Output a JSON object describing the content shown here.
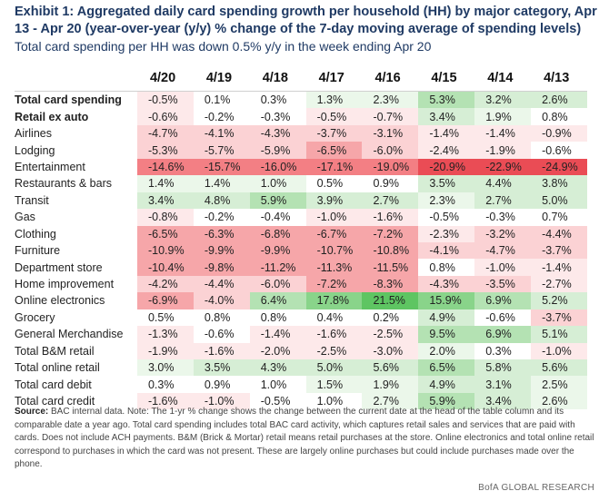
{
  "title": "Exhibit 1: Aggregated daily card spending growth per household (HH) by major category, Apr 13 - Apr 20 (year-over-year (y/y) % change of the 7-day moving average of spending levels)",
  "subtitle": "Total card spending per HH was down 0.5% y/y in the week ending Apr 20",
  "columns": [
    "4/20",
    "4/19",
    "4/18",
    "4/17",
    "4/16",
    "4/15",
    "4/14",
    "4/13"
  ],
  "colors": {
    "dark_red": "#ea4c55",
    "red": "#f37f84",
    "mid_red": "#f6a6a9",
    "light_red": "#fbd2d4",
    "pale_red": "#fde9ea",
    "dark_green": "#5ec562",
    "green": "#89d48a",
    "mid_green": "#b4e2b3",
    "light_green": "#d6eed5",
    "pale_green": "#ebf7ea",
    "neutral": "#ffffff",
    "title": "#1f3a64"
  },
  "rows": [
    {
      "label": "Total card spending",
      "bold": true,
      "values": [
        "-0.5%",
        "0.1%",
        "0.3%",
        "1.3%",
        "2.3%",
        "5.3%",
        "3.2%",
        "2.6%"
      ],
      "tones": [
        "r1",
        "n",
        "n",
        "g1",
        "g1",
        "g3",
        "g2",
        "g2"
      ]
    },
    {
      "label": "Retail ex auto",
      "bold": true,
      "values": [
        "-0.6%",
        "-0.2%",
        "-0.3%",
        "-0.5%",
        "-0.7%",
        "3.4%",
        "1.9%",
        "0.8%"
      ],
      "tones": [
        "r1",
        "n",
        "n",
        "r1",
        "r1",
        "g2",
        "g1",
        "n"
      ]
    },
    {
      "label": "Airlines",
      "bold": false,
      "values": [
        "-4.7%",
        "-4.1%",
        "-4.3%",
        "-3.7%",
        "-3.1%",
        "-1.4%",
        "-1.4%",
        "-0.9%"
      ],
      "tones": [
        "r2",
        "r2",
        "r2",
        "r2",
        "r2",
        "r1",
        "r1",
        "r1"
      ]
    },
    {
      "label": "Lodging",
      "bold": false,
      "values": [
        "-5.3%",
        "-5.7%",
        "-5.9%",
        "-6.5%",
        "-6.0%",
        "-2.4%",
        "-1.9%",
        "-0.6%"
      ],
      "tones": [
        "r2",
        "r2",
        "r2",
        "r3",
        "r2",
        "r1",
        "r1",
        "n"
      ]
    },
    {
      "label": "Entertainment",
      "bold": false,
      "values": [
        "-14.6%",
        "-15.7%",
        "-16.0%",
        "-17.1%",
        "-19.0%",
        "-20.9%",
        "-22.9%",
        "-24.9%"
      ],
      "tones": [
        "r4",
        "r4",
        "r4",
        "r4",
        "r4",
        "r5",
        "r5",
        "r5"
      ]
    },
    {
      "label": "Restaurants & bars",
      "bold": false,
      "values": [
        "1.4%",
        "1.4%",
        "1.0%",
        "0.5%",
        "0.9%",
        "3.5%",
        "4.4%",
        "3.8%"
      ],
      "tones": [
        "g1",
        "g1",
        "g1",
        "n",
        "n",
        "g2",
        "g2",
        "g2"
      ]
    },
    {
      "label": "Transit",
      "bold": false,
      "values": [
        "3.4%",
        "4.8%",
        "5.9%",
        "3.9%",
        "2.7%",
        "2.3%",
        "2.7%",
        "5.0%"
      ],
      "tones": [
        "g2",
        "g2",
        "g3",
        "g2",
        "g2",
        "g1",
        "g2",
        "g2"
      ]
    },
    {
      "label": "Gas",
      "bold": false,
      "values": [
        "-0.8%",
        "-0.2%",
        "-0.4%",
        "-1.0%",
        "-1.6%",
        "-0.5%",
        "-0.3%",
        "0.7%"
      ],
      "tones": [
        "r1",
        "n",
        "n",
        "r1",
        "r1",
        "n",
        "n",
        "n"
      ]
    },
    {
      "label": "Clothing",
      "bold": false,
      "values": [
        "-6.5%",
        "-6.3%",
        "-6.8%",
        "-6.7%",
        "-7.2%",
        "-2.3%",
        "-3.2%",
        "-4.4%"
      ],
      "tones": [
        "r3",
        "r3",
        "r3",
        "r3",
        "r3",
        "r1",
        "r2",
        "r2"
      ]
    },
    {
      "label": "Furniture",
      "bold": false,
      "values": [
        "-10.9%",
        "-9.9%",
        "-9.9%",
        "-10.7%",
        "-10.8%",
        "-4.1%",
        "-4.7%",
        "-3.7%"
      ],
      "tones": [
        "r3",
        "r3",
        "r3",
        "r3",
        "r3",
        "r2",
        "r2",
        "r2"
      ]
    },
    {
      "label": "Department store",
      "bold": false,
      "values": [
        "-10.4%",
        "-9.8%",
        "-11.2%",
        "-11.3%",
        "-11.5%",
        "0.8%",
        "-1.0%",
        "-1.4%"
      ],
      "tones": [
        "r3",
        "r3",
        "r3",
        "r3",
        "r3",
        "n",
        "r1",
        "r1"
      ]
    },
    {
      "label": "Home improvement",
      "bold": false,
      "values": [
        "-4.2%",
        "-4.4%",
        "-6.0%",
        "-7.2%",
        "-8.3%",
        "-4.3%",
        "-3.5%",
        "-2.7%"
      ],
      "tones": [
        "r2",
        "r2",
        "r2",
        "r3",
        "r3",
        "r2",
        "r2",
        "r1"
      ]
    },
    {
      "label": "Online electronics",
      "bold": false,
      "values": [
        "-6.9%",
        "-4.0%",
        "6.4%",
        "17.8%",
        "21.5%",
        "15.9%",
        "6.9%",
        "5.2%"
      ],
      "tones": [
        "r3",
        "r2",
        "g3",
        "g4",
        "g5",
        "g4",
        "g3",
        "g2"
      ]
    },
    {
      "label": "Grocery",
      "bold": false,
      "values": [
        "0.5%",
        "0.8%",
        "0.8%",
        "0.4%",
        "0.2%",
        "4.9%",
        "-0.6%",
        "-3.7%"
      ],
      "tones": [
        "n",
        "n",
        "n",
        "n",
        "n",
        "g2",
        "n",
        "r2"
      ]
    },
    {
      "label": "General Merchandise",
      "bold": false,
      "values": [
        "-1.3%",
        "-0.6%",
        "-1.4%",
        "-1.6%",
        "-2.5%",
        "9.5%",
        "6.9%",
        "5.1%"
      ],
      "tones": [
        "r1",
        "n",
        "r1",
        "r1",
        "r1",
        "g3",
        "g3",
        "g2"
      ]
    },
    {
      "label": "Total B&M retail",
      "bold": false,
      "values": [
        "-1.9%",
        "-1.6%",
        "-2.0%",
        "-2.5%",
        "-3.0%",
        "2.0%",
        "0.3%",
        "-1.0%"
      ],
      "tones": [
        "r1",
        "r1",
        "r1",
        "r1",
        "r1",
        "g1",
        "n",
        "r1"
      ]
    },
    {
      "label": "Total online retail",
      "bold": false,
      "values": [
        "3.0%",
        "3.5%",
        "4.3%",
        "5.0%",
        "5.6%",
        "6.5%",
        "5.8%",
        "5.6%"
      ],
      "tones": [
        "g1",
        "g2",
        "g2",
        "g2",
        "g2",
        "g3",
        "g2",
        "g2"
      ]
    },
    {
      "label": "Total card debit",
      "bold": false,
      "values": [
        "0.3%",
        "0.9%",
        "1.0%",
        "1.5%",
        "1.9%",
        "4.9%",
        "3.1%",
        "2.5%"
      ],
      "tones": [
        "n",
        "n",
        "n",
        "g1",
        "g1",
        "g2",
        "g2",
        "g1"
      ]
    },
    {
      "label": "Total card credit",
      "bold": false,
      "values": [
        "-1.6%",
        "-1.0%",
        "-0.5%",
        "1.0%",
        "2.7%",
        "5.9%",
        "3.4%",
        "2.6%"
      ],
      "tones": [
        "r1",
        "r1",
        "n",
        "n",
        "g1",
        "g3",
        "g2",
        "g1"
      ]
    }
  ],
  "source": {
    "label": "Source:",
    "text": "BAC internal data. Note: The 1-yr % change shows the change between the current date at the head of the table column and its comparable date a year ago. Total card spending includes total BAC card activity, which captures retail sales and services that are paid with cards. Does not include ACH payments. B&M (Brick & Mortar) retail means retail purchases at the store. Online electronics and total online retail correspond to purchases in which the card was not present. These are largely online purchases but could include purchases made over the phone."
  },
  "footer": "BofA GLOBAL RESEARCH"
}
